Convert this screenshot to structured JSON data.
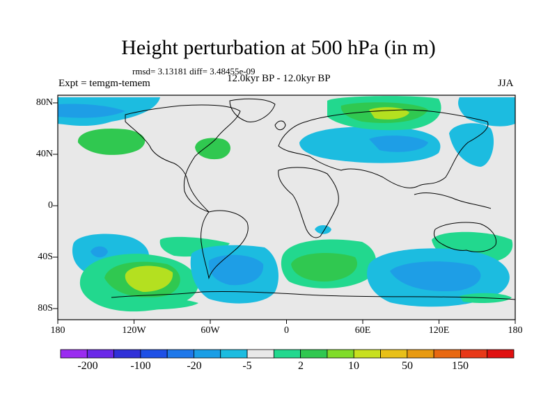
{
  "title": "Height perturbation at 500 hPa (in m)",
  "stats": "rmsd= 3.13181 diff= 3.48455e-09",
  "expt": "Expt = temgm-temem",
  "period": "12.0kyr BP - 12.0kyr BP",
  "season": "JJA",
  "lat_labels": [
    "80N",
    "40N",
    "0",
    "40S",
    "80S"
  ],
  "lon_labels": [
    "180",
    "120W",
    "60W",
    "0",
    "60E",
    "120E",
    "180"
  ],
  "colorbar": {
    "labels": [
      "-200",
      "-100",
      "-20",
      "-5",
      "2",
      "10",
      "50",
      "150"
    ],
    "colors": [
      "#9a2cf0",
      "#6a28e8",
      "#3030d8",
      "#1e50e6",
      "#1e78ea",
      "#1a9ee6",
      "#1cbce0",
      "#e8e8e8",
      "#22d88e",
      "#30c850",
      "#80dc2a",
      "#c8e020",
      "#e8c018",
      "#e89a10",
      "#e86810",
      "#e83818",
      "#e01010"
    ]
  },
  "map_colors": {
    "background": "#e8e8e8",
    "neg_light": "#1cbce0",
    "neg_mid": "#1e9ee6",
    "neg_strong": "#1e78ea",
    "pos_light": "#22d88e",
    "pos_mid": "#30c850",
    "pos_strong": "#b4e020"
  }
}
